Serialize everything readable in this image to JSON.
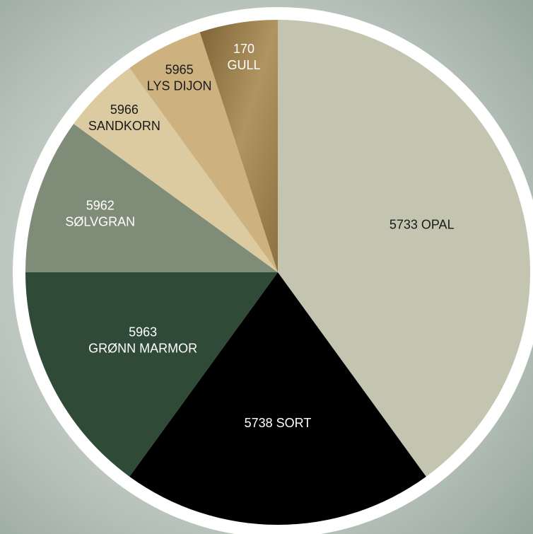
{
  "chart_data": {
    "type": "pie",
    "categories": [
      [
        "5733 OPAL"
      ],
      [
        "5738 SORT"
      ],
      [
        "5963",
        "GRØNN MARMOR"
      ],
      [
        "5962",
        "SØLVGRAN"
      ],
      [
        "5966",
        "SANDKORN"
      ],
      [
        "5965",
        "LYS DIJON"
      ],
      [
        "170",
        "GULL"
      ]
    ],
    "values": [
      40,
      20,
      15,
      10,
      5,
      5,
      5
    ],
    "colors": [
      "#c4c5b0",
      "#000000",
      "#2f4a36",
      "#7f8c78",
      "#dccaa0",
      "#cdb27f",
      "#a88a55"
    ]
  }
}
